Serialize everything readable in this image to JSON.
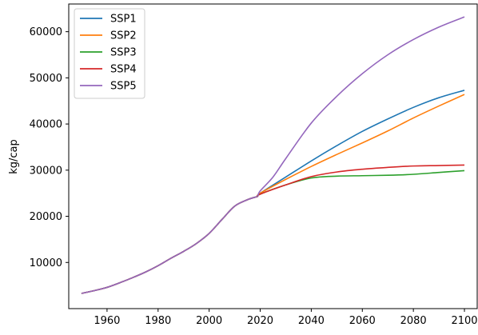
{
  "chart_data": {
    "type": "line",
    "title": "",
    "xlabel": "",
    "ylabel": "kg/cap",
    "xlim": [
      1945,
      2105
    ],
    "ylim": [
      0,
      66000
    ],
    "xticks": [
      1960,
      1980,
      2000,
      2020,
      2040,
      2060,
      2080,
      2100
    ],
    "yticks": [
      10000,
      20000,
      30000,
      40000,
      50000,
      60000
    ],
    "grid": false,
    "legend_position": "top-left",
    "historical": {
      "x": [
        1950,
        1955,
        1960,
        1965,
        1970,
        1975,
        1980,
        1985,
        1990,
        1995,
        2000,
        2005,
        2010,
        2015,
        2019
      ],
      "y": [
        3300,
        3900,
        4600,
        5600,
        6700,
        7900,
        9300,
        10900,
        12400,
        14100,
        16300,
        19300,
        22200,
        23600,
        24300
      ]
    },
    "series": [
      {
        "name": "SSP1",
        "color": "#1f77b4",
        "x": [
          2020,
          2030,
          2040,
          2050,
          2060,
          2070,
          2080,
          2090,
          2100
        ],
        "y": [
          25000,
          28500,
          32000,
          35300,
          38400,
          41100,
          43600,
          45700,
          47300
        ]
      },
      {
        "name": "SSP2",
        "color": "#ff7f0e",
        "x": [
          2020,
          2030,
          2040,
          2050,
          2060,
          2070,
          2080,
          2090,
          2100
        ],
        "y": [
          25000,
          28000,
          30800,
          33400,
          35900,
          38500,
          41300,
          43900,
          46400
        ]
      },
      {
        "name": "SSP3",
        "color": "#2ca02c",
        "x": [
          2020,
          2030,
          2040,
          2050,
          2060,
          2070,
          2080,
          2090,
          2100
        ],
        "y": [
          24800,
          26800,
          28300,
          28700,
          28800,
          28900,
          29100,
          29500,
          29900
        ]
      },
      {
        "name": "SSP4",
        "color": "#d62728",
        "x": [
          2020,
          2030,
          2040,
          2050,
          2060,
          2070,
          2080,
          2090,
          2100
        ],
        "y": [
          24800,
          26800,
          28600,
          29600,
          30200,
          30600,
          30900,
          31000,
          31100
        ]
      },
      {
        "name": "SSP5",
        "color": "#9467bd",
        "x": [
          2020,
          2025,
          2030,
          2040,
          2050,
          2060,
          2070,
          2080,
          2090,
          2100
        ],
        "y": [
          25500,
          28500,
          32500,
          40200,
          46000,
          50900,
          55000,
          58300,
          61000,
          63200
        ]
      }
    ]
  }
}
